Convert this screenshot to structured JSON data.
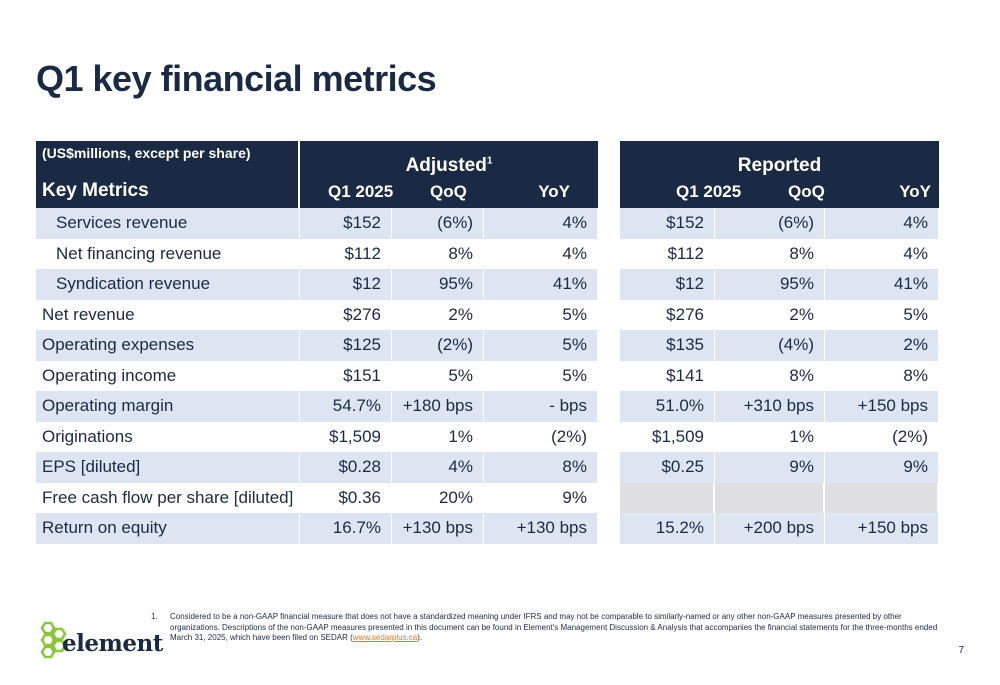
{
  "title": "Q1 key financial metrics",
  "table": {
    "units_note": "(US$millions, except per share)",
    "key_header": "Key Metrics",
    "adjusted_label": "Adjusted",
    "adjusted_sup": "1",
    "reported_label": "Reported",
    "col_q": "Q1 2025",
    "col_qoq": "QoQ",
    "col_yoy": "YoY",
    "rows": [
      {
        "label": "Services revenue",
        "adj_q": "$152",
        "adj_qoq": "(6%)",
        "adj_yoy": "4%",
        "rep_q": "$152",
        "rep_qoq": "(6%)",
        "rep_yoy": "4%"
      },
      {
        "label": "Net financing revenue",
        "adj_q": "$112",
        "adj_qoq": "8%",
        "adj_yoy": "4%",
        "rep_q": "$112",
        "rep_qoq": "8%",
        "rep_yoy": "4%"
      },
      {
        "label": "Syndication revenue",
        "adj_q": "$12",
        "adj_qoq": "95%",
        "adj_yoy": "41%",
        "rep_q": "$12",
        "rep_qoq": "95%",
        "rep_yoy": "41%"
      },
      {
        "label": "Net revenue",
        "adj_q": "$276",
        "adj_qoq": "2%",
        "adj_yoy": "5%",
        "rep_q": "$276",
        "rep_qoq": "2%",
        "rep_yoy": "5%"
      },
      {
        "label": "Operating expenses",
        "adj_q": "$125",
        "adj_qoq": "(2%)",
        "adj_yoy": "5%",
        "rep_q": "$135",
        "rep_qoq": "(4%)",
        "rep_yoy": "2%"
      },
      {
        "label": "Operating income",
        "adj_q": "$151",
        "adj_qoq": "5%",
        "adj_yoy": "5%",
        "rep_q": "$141",
        "rep_qoq": "8%",
        "rep_yoy": "8%"
      },
      {
        "label": "Operating margin",
        "adj_q": "54.7%",
        "adj_qoq": "+180 bps",
        "adj_yoy": "- bps",
        "rep_q": "51.0%",
        "rep_qoq": "+310 bps",
        "rep_yoy": "+150 bps"
      },
      {
        "label": "Originations",
        "adj_q": "$1,509",
        "adj_qoq": "1%",
        "adj_yoy": "(2%)",
        "rep_q": "$1,509",
        "rep_qoq": "1%",
        "rep_yoy": "(2%)"
      },
      {
        "label": "EPS [diluted]",
        "adj_q": "$0.28",
        "adj_qoq": "4%",
        "adj_yoy": "8%",
        "rep_q": "$0.25",
        "rep_qoq": "9%",
        "rep_yoy": "9%"
      },
      {
        "label": "Free cash flow per share [diluted]",
        "adj_q": "$0.36",
        "adj_qoq": "20%",
        "adj_yoy": "9%",
        "rep_q": "",
        "rep_qoq": "",
        "rep_yoy": ""
      },
      {
        "label": "Return on equity",
        "adj_q": "16.7%",
        "adj_qoq": "+130 bps",
        "adj_yoy": "+130 bps",
        "rep_q": "15.2%",
        "rep_qoq": "+200 bps",
        "rep_yoy": "+150 bps"
      }
    ]
  },
  "footnote": {
    "number": "1.",
    "text": "Considered to be a non-GAAP financial measure that does not have a standardized meaning under IFRS and may not be comparable to similarly-named or any other non-GAAP measures presented by other organizations. Descriptions of the non-GAAP measures presented in this document can be found in Element's Management Discussion & Analysis that accompanies the financial statements for the three-months ended March 31, 2025, which have been filed on SEDAR (",
    "link": "www.sedarplus.ca",
    "text_end": ")."
  },
  "logo": {
    "text": "element",
    "color": "#8cc63f"
  },
  "page_number": "7",
  "colors": {
    "navy": "#1b2a44",
    "row_shade": "#dde5f2",
    "empty_cell": "#dedee3",
    "link": "#e07a2c"
  }
}
